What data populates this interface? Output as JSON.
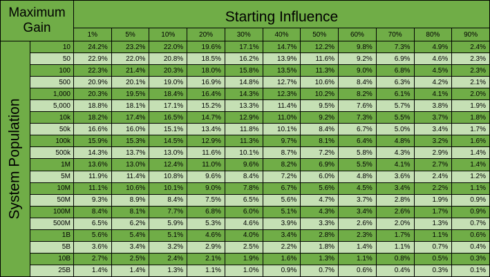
{
  "corner_label": "Maximum Gain",
  "col_group_label": "Starting Influence",
  "row_group_label": "System Population",
  "columns": [
    "1%",
    "5%",
    "10%",
    "20%",
    "30%",
    "40%",
    "50%",
    "60%",
    "70%",
    "80%",
    "90%"
  ],
  "rows": [
    {
      "label": "10",
      "values": [
        "24.2%",
        "23.2%",
        "22.0%",
        "19.6%",
        "17.1%",
        "14.7%",
        "12.2%",
        "9.8%",
        "7.3%",
        "4.9%",
        "2.4%"
      ]
    },
    {
      "label": "50",
      "values": [
        "22.9%",
        "22.0%",
        "20.8%",
        "18.5%",
        "16.2%",
        "13.9%",
        "11.6%",
        "9.2%",
        "6.9%",
        "4.6%",
        "2.3%"
      ]
    },
    {
      "label": "100",
      "values": [
        "22.3%",
        "21.4%",
        "20.3%",
        "18.0%",
        "15.8%",
        "13.5%",
        "11.3%",
        "9.0%",
        "6.8%",
        "4.5%",
        "2.3%"
      ]
    },
    {
      "label": "500",
      "values": [
        "20.9%",
        "20.1%",
        "19.0%",
        "16.9%",
        "14.8%",
        "12.7%",
        "10.6%",
        "8.4%",
        "6.3%",
        "4.2%",
        "2.1%"
      ]
    },
    {
      "label": "1,000",
      "values": [
        "20.3%",
        "19.5%",
        "18.4%",
        "16.4%",
        "14.3%",
        "12.3%",
        "10.2%",
        "8.2%",
        "6.1%",
        "4.1%",
        "2.0%"
      ]
    },
    {
      "label": "5,000",
      "values": [
        "18.8%",
        "18.1%",
        "17.1%",
        "15.2%",
        "13.3%",
        "11.4%",
        "9.5%",
        "7.6%",
        "5.7%",
        "3.8%",
        "1.9%"
      ]
    },
    {
      "label": "10k",
      "values": [
        "18.2%",
        "17.4%",
        "16.5%",
        "14.7%",
        "12.9%",
        "11.0%",
        "9.2%",
        "7.3%",
        "5.5%",
        "3.7%",
        "1.8%"
      ]
    },
    {
      "label": "50k",
      "values": [
        "16.6%",
        "16.0%",
        "15.1%",
        "13.4%",
        "11.8%",
        "10.1%",
        "8.4%",
        "6.7%",
        "5.0%",
        "3.4%",
        "1.7%"
      ]
    },
    {
      "label": "100k",
      "values": [
        "15.9%",
        "15.3%",
        "14.5%",
        "12.9%",
        "11.3%",
        "9.7%",
        "8.1%",
        "6.4%",
        "4.8%",
        "3.2%",
        "1.6%"
      ]
    },
    {
      "label": "500k",
      "values": [
        "14.3%",
        "13.7%",
        "13.0%",
        "11.6%",
        "10.1%",
        "8.7%",
        "7.2%",
        "5.8%",
        "4.3%",
        "2.9%",
        "1.4%"
      ]
    },
    {
      "label": "1M",
      "values": [
        "13.6%",
        "13.0%",
        "12.4%",
        "11.0%",
        "9.6%",
        "8.2%",
        "6.9%",
        "5.5%",
        "4.1%",
        "2.7%",
        "1.4%"
      ]
    },
    {
      "label": "5M",
      "values": [
        "11.9%",
        "11.4%",
        "10.8%",
        "9.6%",
        "8.4%",
        "7.2%",
        "6.0%",
        "4.8%",
        "3.6%",
        "2.4%",
        "1.2%"
      ]
    },
    {
      "label": "10M",
      "values": [
        "11.1%",
        "10.6%",
        "10.1%",
        "9.0%",
        "7.8%",
        "6.7%",
        "5.6%",
        "4.5%",
        "3.4%",
        "2.2%",
        "1.1%"
      ]
    },
    {
      "label": "50M",
      "values": [
        "9.3%",
        "8.9%",
        "8.4%",
        "7.5%",
        "6.5%",
        "5.6%",
        "4.7%",
        "3.7%",
        "2.8%",
        "1.9%",
        "0.9%"
      ]
    },
    {
      "label": "100M",
      "values": [
        "8.4%",
        "8.1%",
        "7.7%",
        "6.8%",
        "6.0%",
        "5.1%",
        "4.3%",
        "3.4%",
        "2.6%",
        "1.7%",
        "0.9%"
      ]
    },
    {
      "label": "500M",
      "values": [
        "6.5%",
        "6.2%",
        "5.9%",
        "5.3%",
        "4.6%",
        "3.9%",
        "3.3%",
        "2.6%",
        "2.0%",
        "1.3%",
        "0.7%"
      ]
    },
    {
      "label": "1B",
      "values": [
        "5.6%",
        "5.4%",
        "5.1%",
        "4.6%",
        "4.0%",
        "3.4%",
        "2.8%",
        "2.3%",
        "1.7%",
        "1.1%",
        "0.6%"
      ]
    },
    {
      "label": "5B",
      "values": [
        "3.6%",
        "3.4%",
        "3.2%",
        "2.9%",
        "2.5%",
        "2.2%",
        "1.8%",
        "1.4%",
        "1.1%",
        "0.7%",
        "0.4%"
      ]
    },
    {
      "label": "10B",
      "values": [
        "2.7%",
        "2.5%",
        "2.4%",
        "2.1%",
        "1.9%",
        "1.6%",
        "1.3%",
        "1.1%",
        "0.8%",
        "0.5%",
        "0.3%"
      ]
    },
    {
      "label": "25B",
      "values": [
        "1.4%",
        "1.4%",
        "1.3%",
        "1.1%",
        "1.0%",
        "0.9%",
        "0.7%",
        "0.6%",
        "0.4%",
        "0.3%",
        "0.1%"
      ]
    }
  ],
  "colors": {
    "header_green": "#70ad47",
    "row_dark": "#70ad47",
    "row_light": "#c5e0b4",
    "border": "#000000"
  }
}
